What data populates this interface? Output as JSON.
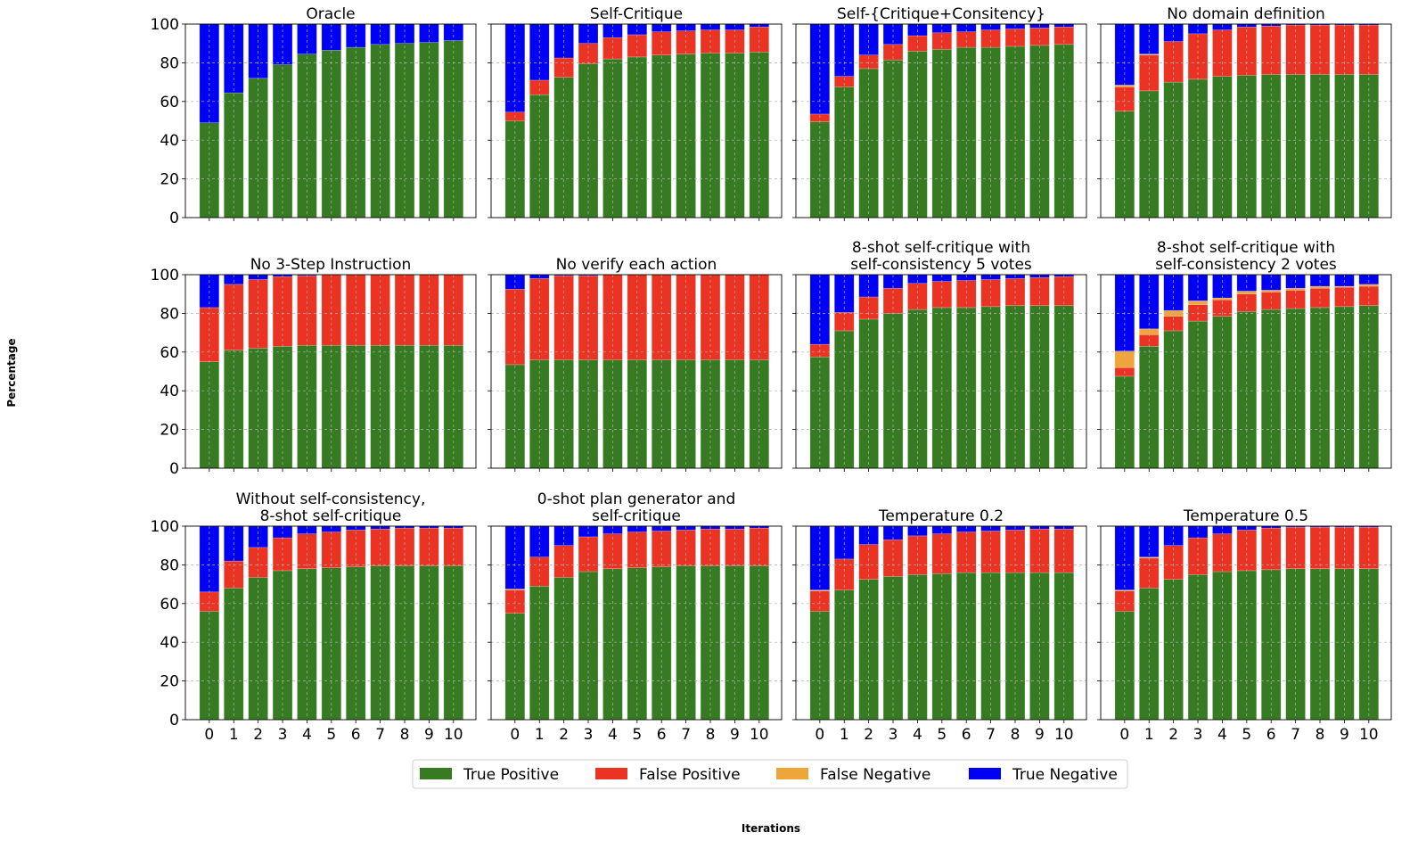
{
  "chart_data": {
    "type": "bar",
    "stacked": true,
    "ylabel": "Percentage",
    "xlabel": "Iterations",
    "ylim": [
      0,
      100
    ],
    "yticks": [
      0,
      20,
      40,
      60,
      80,
      100
    ],
    "categories": [
      "0",
      "1",
      "2",
      "3",
      "4",
      "5",
      "6",
      "7",
      "8",
      "9",
      "10"
    ],
    "grid": true,
    "legend_position": "bottom-center",
    "legend": [
      {
        "key": "tp",
        "name": "True Positive",
        "color": "#367b22"
      },
      {
        "key": "fp",
        "name": "False Positive",
        "color": "#eb3323"
      },
      {
        "key": "fn",
        "name": "False Negative",
        "color": "#f0a53b"
      },
      {
        "key": "tn",
        "name": "True Negative",
        "color": "#0000f5"
      }
    ],
    "panels": [
      {
        "title": [
          "Oracle"
        ],
        "tp": [
          49,
          64.5,
          72,
          79,
          84.5,
          86.5,
          88,
          89.5,
          90,
          90.5,
          91.5
        ],
        "fp": [
          0,
          0,
          0,
          0,
          0,
          0,
          0,
          0,
          0,
          0,
          0
        ],
        "fn": [
          0,
          0,
          0,
          0,
          0,
          0,
          0,
          0,
          0,
          0,
          0
        ],
        "tn": [
          51,
          35.5,
          28,
          21,
          15.5,
          13.5,
          12,
          10.5,
          10,
          9.5,
          8.5
        ]
      },
      {
        "title": [
          "Self-Critique"
        ],
        "tp": [
          50,
          63.5,
          72.5,
          79.5,
          82,
          83,
          84,
          84.5,
          85,
          85,
          85.5
        ],
        "fp": [
          4.5,
          7.5,
          10,
          10.5,
          11,
          11.5,
          12,
          12,
          12,
          12,
          13
        ],
        "fn": [
          0,
          0,
          0,
          0,
          0,
          0,
          0,
          0,
          0,
          0,
          0
        ],
        "tn": [
          45.5,
          29,
          17.5,
          10,
          7,
          5.5,
          4,
          3.5,
          3,
          3,
          1.5
        ]
      },
      {
        "title": [
          "Self-{Critique+Consitency}"
        ],
        "tp": [
          49.5,
          67.5,
          77,
          81.5,
          86,
          87,
          88,
          88,
          88.5,
          89,
          89.5
        ],
        "fp": [
          4,
          5.5,
          7,
          8,
          8,
          8.5,
          8,
          9,
          9,
          9,
          9
        ],
        "fn": [
          0,
          0,
          0,
          0,
          0,
          0,
          0,
          0,
          0,
          0,
          0
        ],
        "tn": [
          46.5,
          27,
          16,
          10.5,
          6,
          4.5,
          4,
          3,
          2.5,
          2,
          1.5
        ]
      },
      {
        "title": [
          "No domain definition"
        ],
        "tp": [
          55,
          65.5,
          70,
          71.5,
          73,
          73.5,
          74,
          74,
          74,
          74,
          74
        ],
        "fp": [
          12.5,
          18.5,
          21,
          23.5,
          24,
          25,
          25,
          25.5,
          25.5,
          25.5,
          25.5
        ],
        "fn": [
          1,
          0.5,
          0,
          0,
          0,
          0,
          0,
          0,
          0,
          0,
          0
        ],
        "tn": [
          31.5,
          15.5,
          9,
          5,
          3,
          1.5,
          1,
          0.5,
          0.5,
          0.5,
          0.5
        ]
      },
      {
        "title": [
          "No 3-Step Instruction"
        ],
        "tp": [
          55,
          61,
          62,
          63,
          63.5,
          63.5,
          63.5,
          63.5,
          63.5,
          63.5,
          63.5
        ],
        "fp": [
          28,
          34,
          35.5,
          36,
          36,
          36.5,
          36.5,
          36.5,
          36.5,
          36.5,
          36.5
        ],
        "fn": [
          0,
          0,
          0,
          0,
          0,
          0,
          0,
          0,
          0,
          0,
          0
        ],
        "tn": [
          17,
          5,
          2.5,
          1,
          0.5,
          0,
          0,
          0,
          0,
          0,
          0
        ]
      },
      {
        "title": [
          "No verify each action"
        ],
        "tp": [
          53.5,
          56,
          56,
          56,
          56,
          56,
          56,
          56,
          56,
          56,
          56
        ],
        "fp": [
          39,
          42,
          43.5,
          43.5,
          44,
          44,
          44,
          44,
          44,
          44,
          44
        ],
        "fn": [
          0,
          0,
          0,
          0,
          0,
          0,
          0,
          0,
          0,
          0,
          0
        ],
        "tn": [
          7.5,
          2,
          0.5,
          0.5,
          0,
          0,
          0,
          0,
          0,
          0,
          0
        ]
      },
      {
        "title": [
          "8-shot self-critique with",
          "self-consistency 5 votes"
        ],
        "tp": [
          57.5,
          71,
          77,
          80,
          82,
          83,
          83,
          83.5,
          84,
          84,
          84
        ],
        "fp": [
          6.5,
          9.5,
          11.5,
          13,
          13.5,
          13.5,
          14,
          14,
          14,
          14.5,
          15
        ],
        "fn": [
          0,
          0,
          0,
          0,
          0,
          0,
          0,
          0,
          0,
          0,
          0
        ],
        "tn": [
          36,
          19.5,
          11.5,
          7,
          4.5,
          3.5,
          3,
          2.5,
          2,
          1.5,
          1
        ]
      },
      {
        "title": [
          "8-shot self-critique with",
          "self-consistency 2 votes"
        ],
        "tp": [
          47.5,
          63,
          71,
          76,
          78.5,
          81,
          82,
          82.5,
          83,
          83.5,
          84
        ],
        "fp": [
          4.5,
          6,
          7.5,
          8.5,
          8.5,
          9,
          9,
          9.5,
          10,
          10,
          10
        ],
        "fn": [
          8.5,
          3,
          3,
          2,
          1,
          1.5,
          1,
          1,
          1,
          0.5,
          1
        ],
        "tn": [
          39.5,
          28,
          18.5,
          13.5,
          12,
          8.5,
          8,
          7,
          6,
          6,
          5
        ]
      },
      {
        "title": [
          "Without self-consistency,",
          "8-shot self-critique"
        ],
        "tp": [
          56,
          68,
          73.5,
          77,
          78,
          78.5,
          79,
          79.5,
          79.5,
          79.5,
          79.5
        ],
        "fp": [
          10,
          14,
          15.5,
          17,
          18,
          18.5,
          19,
          19,
          19.5,
          19.5,
          19.5
        ],
        "fn": [
          0,
          0,
          0,
          0,
          0,
          0,
          0,
          0,
          0,
          0,
          0
        ],
        "tn": [
          34,
          18,
          11,
          6,
          4,
          3,
          2,
          1.5,
          1,
          1,
          1
        ]
      },
      {
        "title": [
          "0-shot plan generator and",
          "self-critique"
        ],
        "tp": [
          55,
          69,
          73.5,
          76.5,
          78,
          78.5,
          79,
          79.5,
          79.5,
          79.5,
          79.5
        ],
        "fp": [
          12,
          15,
          16.5,
          18,
          18,
          18.5,
          18.5,
          18.5,
          19,
          19,
          19.5
        ],
        "fn": [
          0.5,
          0,
          0,
          0,
          0,
          0,
          0,
          0,
          0,
          0,
          0
        ],
        "tn": [
          32.5,
          16,
          10,
          5.5,
          4,
          3,
          2.5,
          2,
          1.5,
          1.5,
          1
        ]
      },
      {
        "title": [
          "Temperature 0.2"
        ],
        "tp": [
          56,
          67,
          72.5,
          74,
          75,
          75.5,
          76,
          76,
          76,
          76,
          76
        ],
        "fp": [
          10.5,
          16,
          18,
          19,
          20,
          20.5,
          21,
          21.5,
          22,
          22.5,
          22.5
        ],
        "fn": [
          0.5,
          0,
          0,
          0,
          0,
          0,
          0,
          0,
          0,
          0,
          0
        ],
        "tn": [
          33,
          17,
          9.5,
          7,
          5,
          4,
          3,
          2.5,
          2,
          1.5,
          1.5
        ]
      },
      {
        "title": [
          "Temperature 0.5"
        ],
        "tp": [
          56,
          68,
          72.5,
          75,
          76.5,
          77,
          77.5,
          78,
          78,
          78,
          78
        ],
        "fp": [
          10.5,
          15.5,
          17.5,
          19,
          19.5,
          21,
          21.5,
          21.5,
          21.5,
          21.5,
          21.5
        ],
        "fn": [
          0.5,
          0.5,
          0,
          0,
          0,
          0,
          0,
          0,
          0,
          0,
          0
        ],
        "tn": [
          33,
          16,
          10,
          6,
          4,
          2,
          1,
          0.5,
          0.5,
          0.5,
          0.5
        ]
      }
    ]
  }
}
